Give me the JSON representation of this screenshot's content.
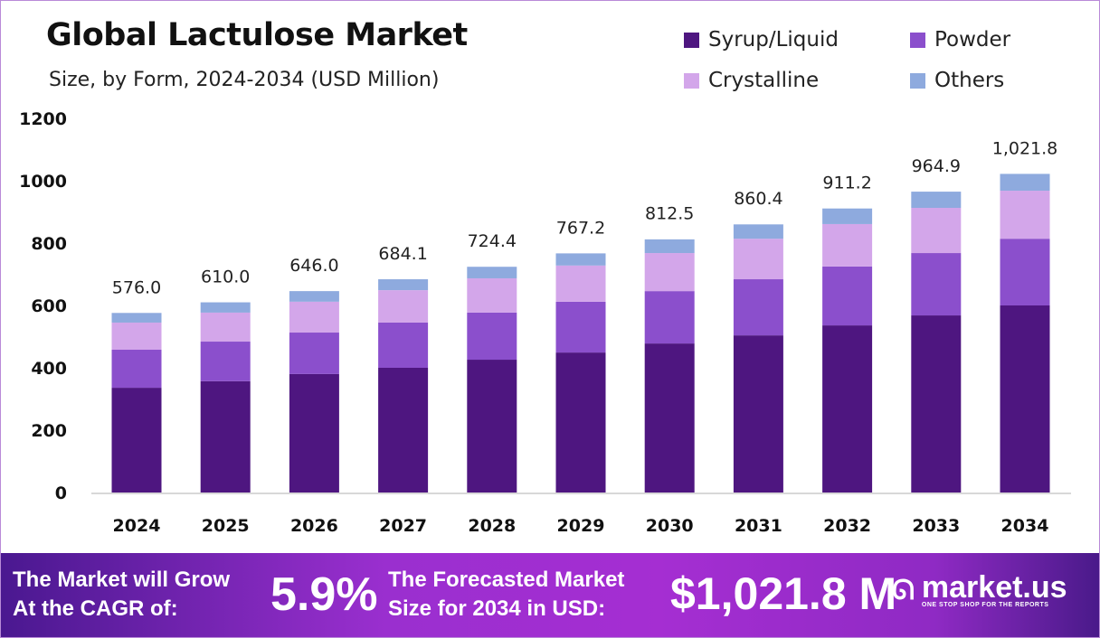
{
  "chart_data": {
    "type": "bar",
    "stacked": true,
    "title": "Global Lactulose Market",
    "subtitle": "Size, by Form, 2024-2034 (USD Million)",
    "categories": [
      "2024",
      "2025",
      "2026",
      "2027",
      "2028",
      "2029",
      "2030",
      "2031",
      "2032",
      "2033",
      "2034"
    ],
    "series": [
      {
        "name": "Syrup/Liquid",
        "color": "#4e1680",
        "values": [
          336,
          357,
          380,
          400,
          426,
          449,
          478,
          504,
          536,
          568,
          600
        ]
      },
      {
        "name": "Powder",
        "color": "#8b4fcc",
        "values": [
          122,
          127,
          133,
          145,
          151,
          163,
          168,
          180,
          189,
          200,
          214
        ]
      },
      {
        "name": "Crystalline",
        "color": "#d3a6ea",
        "values": [
          87,
          93,
          99,
          104,
          110,
          116,
          122,
          130,
          136,
          145,
          154
        ]
      },
      {
        "name": "Others",
        "color": "#8eaade",
        "values": [
          31,
          33,
          34,
          35,
          37,
          39,
          44,
          46,
          50,
          52,
          54
        ]
      }
    ],
    "totals": [
      "576.0",
      "610.0",
      "646.0",
      "684.1",
      "724.4",
      "767.2",
      "812.5",
      "860.4",
      "911.2",
      "964.9",
      "1,021.8"
    ],
    "total_values": [
      576.0,
      610.0,
      646.0,
      684.1,
      724.4,
      767.2,
      812.5,
      860.4,
      911.2,
      964.9,
      1021.8
    ],
    "ylim": [
      0,
      1200
    ],
    "yticks": [
      "0",
      "200",
      "400",
      "600",
      "800",
      "1000",
      "1200"
    ],
    "grid": false,
    "legend_position": "top-right"
  },
  "banner": {
    "cagr_label": [
      "The Market will Grow",
      "At the CAGR of:"
    ],
    "cagr_value": "5.9%",
    "forecast_label": [
      "The Forecasted Market",
      "Size for 2034 in USD:"
    ],
    "forecast_value": "$1,021.8 M",
    "logo_text": "market.us",
    "logo_tagline": "ONE STOP SHOP FOR THE REPORTS"
  }
}
